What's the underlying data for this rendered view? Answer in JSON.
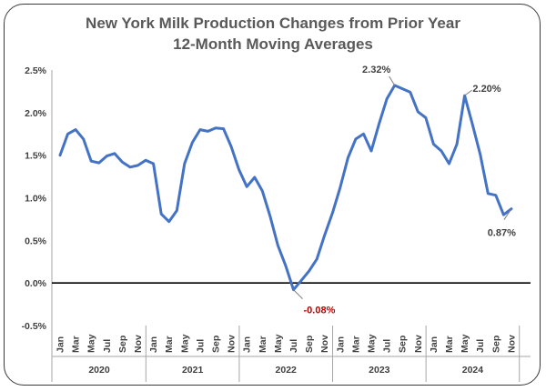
{
  "chart_data": {
    "type": "line",
    "title": "New York Milk Production Changes from Prior Year",
    "subtitle": "12-Month Moving Averages",
    "y_ticks": [
      "2.5%",
      "2.0%",
      "1.5%",
      "1.0%",
      "0.5%",
      "0.0%",
      "-0.5%"
    ],
    "ylim": [
      -0.5,
      2.5
    ],
    "month_labels": [
      "Jan",
      "Mar",
      "May",
      "Jul",
      "Sep",
      "Nov"
    ],
    "years": [
      "2020",
      "2021",
      "2022",
      "2023",
      "2024"
    ],
    "x": [
      "2020-01",
      "2020-02",
      "2020-03",
      "2020-04",
      "2020-05",
      "2020-06",
      "2020-07",
      "2020-08",
      "2020-09",
      "2020-10",
      "2020-11",
      "2020-12",
      "2021-01",
      "2021-02",
      "2021-03",
      "2021-04",
      "2021-05",
      "2021-06",
      "2021-07",
      "2021-08",
      "2021-09",
      "2021-10",
      "2021-11",
      "2021-12",
      "2022-01",
      "2022-02",
      "2022-03",
      "2022-04",
      "2022-05",
      "2022-06",
      "2022-07",
      "2022-08",
      "2022-09",
      "2022-10",
      "2022-11",
      "2022-12",
      "2023-01",
      "2023-02",
      "2023-03",
      "2023-04",
      "2023-05",
      "2023-06",
      "2023-07",
      "2023-08",
      "2023-09",
      "2023-10",
      "2023-11",
      "2023-12",
      "2024-01",
      "2024-02",
      "2024-03",
      "2024-04",
      "2024-05",
      "2024-06",
      "2024-07",
      "2024-08",
      "2024-09",
      "2024-10",
      "2024-11"
    ],
    "values": [
      1.5,
      1.75,
      1.8,
      1.69,
      1.43,
      1.41,
      1.49,
      1.52,
      1.42,
      1.36,
      1.38,
      1.44,
      1.4,
      0.81,
      0.72,
      0.85,
      1.4,
      1.65,
      1.8,
      1.78,
      1.82,
      1.81,
      1.6,
      1.33,
      1.13,
      1.24,
      1.08,
      0.78,
      0.44,
      0.2,
      -0.08,
      0.03,
      0.14,
      0.28,
      0.56,
      0.82,
      1.12,
      1.47,
      1.69,
      1.75,
      1.55,
      1.87,
      2.16,
      2.32,
      2.28,
      2.24,
      2.01,
      1.94,
      1.63,
      1.55,
      1.4,
      1.63,
      2.2,
      1.86,
      1.51,
      1.05,
      1.03,
      0.8,
      0.87
    ],
    "series_color": "#4472C4",
    "annotations": [
      {
        "label": "2.32%",
        "index": 43,
        "color": "#404040"
      },
      {
        "label": "2.20%",
        "index": 52,
        "color": "#404040"
      },
      {
        "label": "-0.08%",
        "index": 30,
        "color": "#C00000"
      },
      {
        "label": "0.87%",
        "index": 58,
        "color": "#404040"
      }
    ]
  }
}
